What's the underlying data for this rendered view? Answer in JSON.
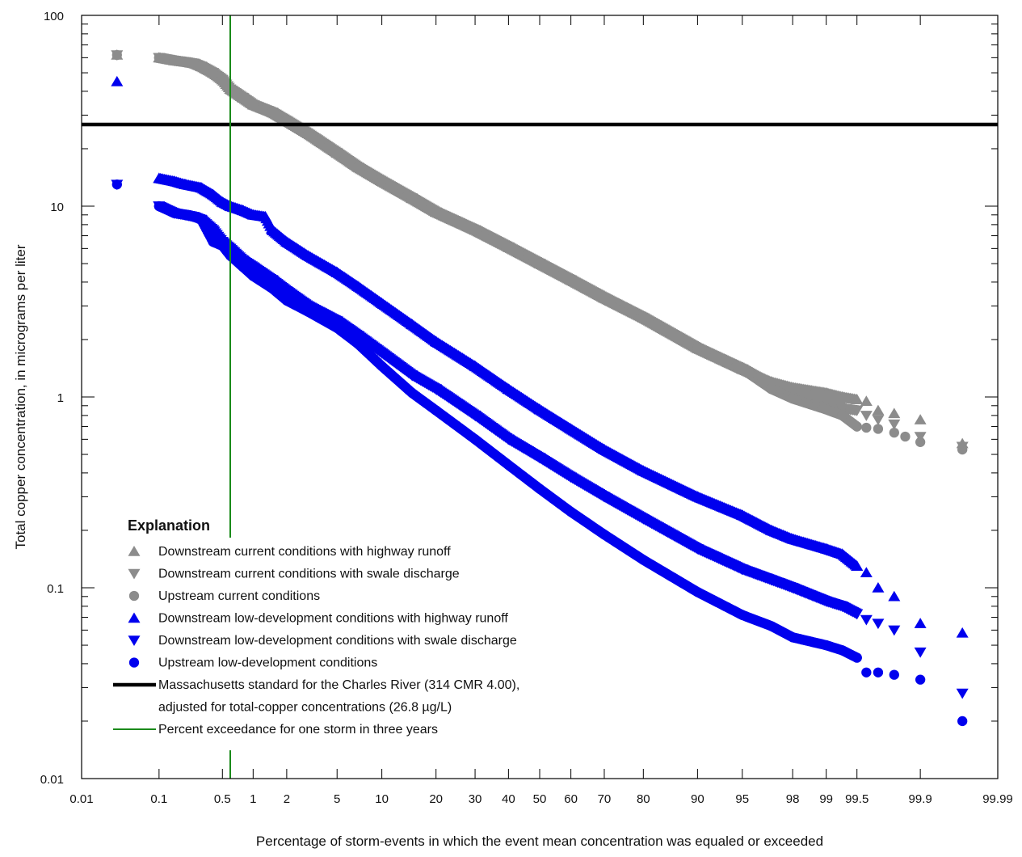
{
  "chart_data": {
    "type": "scatter",
    "title": "",
    "xlabel": "Percentage of storm-events in which the event mean concentration was equaled or exceeded",
    "ylabel": "Total copper concentration, in micrograms per liter",
    "x_scale": "probability",
    "y_scale": "log",
    "xlim": [
      0.01,
      99.99
    ],
    "ylim": [
      0.01,
      100
    ],
    "x_ticks": [
      0.01,
      0.1,
      0.5,
      1,
      2,
      5,
      10,
      20,
      30,
      40,
      50,
      60,
      70,
      80,
      90,
      95,
      98,
      99,
      99.5,
      99.9,
      99.99
    ],
    "x_tick_labels": [
      "0.01",
      "0.1",
      "0.5",
      "1",
      "2",
      "5",
      "10",
      "20",
      "30",
      "40",
      "50",
      "60",
      "70",
      "80",
      "90",
      "95",
      "98",
      "99",
      "99.5",
      "99.9",
      "99.99"
    ],
    "y_ticks": [
      0.01,
      0.1,
      1,
      10,
      100
    ],
    "y_tick_labels": [
      "0.01",
      "0.1",
      "1",
      "10",
      "100"
    ],
    "grid": false,
    "legend": {
      "title": "Explanation",
      "placement": "lower-left"
    },
    "series": [
      {
        "name": "Downstream current conditions with highway runoff",
        "color": "#8c8c8c",
        "marker": "triangle-up",
        "points": [
          [
            0.03,
            62
          ],
          [
            0.1,
            60
          ],
          [
            0.15,
            58
          ],
          [
            0.2,
            57
          ],
          [
            0.25,
            56
          ],
          [
            0.3,
            54
          ],
          [
            0.4,
            50
          ],
          [
            0.5,
            46
          ],
          [
            0.6,
            41
          ],
          [
            0.8,
            37
          ],
          [
            1,
            34
          ],
          [
            1.5,
            31
          ],
          [
            2,
            28
          ],
          [
            3,
            24
          ],
          [
            5,
            19
          ],
          [
            7,
            16
          ],
          [
            10,
            13.5
          ],
          [
            15,
            11
          ],
          [
            20,
            9.3
          ],
          [
            30,
            7.5
          ],
          [
            40,
            6.1
          ],
          [
            50,
            5
          ],
          [
            60,
            4.1
          ],
          [
            70,
            3.3
          ],
          [
            80,
            2.6
          ],
          [
            90,
            1.8
          ],
          [
            95,
            1.4
          ],
          [
            97,
            1.2
          ],
          [
            98,
            1.12
          ],
          [
            99,
            1.05
          ],
          [
            99.3,
            1.0
          ],
          [
            99.5,
            0.97
          ],
          [
            99.6,
            0.95
          ],
          [
            99.7,
            0.85
          ],
          [
            99.8,
            0.82
          ],
          [
            99.9,
            0.76
          ],
          [
            99.97,
            0.57
          ]
        ]
      },
      {
        "name": "Downstream current conditions with swale discharge",
        "color": "#8c8c8c",
        "marker": "triangle-down",
        "points": [
          [
            0.03,
            62
          ],
          [
            0.1,
            60
          ],
          [
            0.15,
            58
          ],
          [
            0.2,
            57
          ],
          [
            0.25,
            56
          ],
          [
            0.3,
            54
          ],
          [
            0.4,
            50
          ],
          [
            0.5,
            46
          ],
          [
            0.6,
            41
          ],
          [
            0.8,
            37
          ],
          [
            1,
            34
          ],
          [
            1.5,
            31
          ],
          [
            2,
            28
          ],
          [
            3,
            24
          ],
          [
            5,
            19
          ],
          [
            7,
            16
          ],
          [
            10,
            13.5
          ],
          [
            15,
            11
          ],
          [
            20,
            9.3
          ],
          [
            30,
            7.5
          ],
          [
            40,
            6.1
          ],
          [
            50,
            5
          ],
          [
            60,
            4.1
          ],
          [
            70,
            3.3
          ],
          [
            80,
            2.6
          ],
          [
            90,
            1.8
          ],
          [
            95,
            1.4
          ],
          [
            97,
            1.15
          ],
          [
            98,
            1.05
          ],
          [
            99,
            0.95
          ],
          [
            99.3,
            0.87
          ],
          [
            99.5,
            0.85
          ],
          [
            99.6,
            0.8
          ],
          [
            99.7,
            0.76
          ],
          [
            99.8,
            0.72
          ],
          [
            99.9,
            0.62
          ],
          [
            99.97,
            0.55
          ]
        ]
      },
      {
        "name": "Upstream current conditions",
        "color": "#8c8c8c",
        "marker": "circle",
        "points": [
          [
            0.03,
            62
          ],
          [
            0.1,
            60
          ],
          [
            0.15,
            58
          ],
          [
            0.2,
            57
          ],
          [
            0.25,
            56
          ],
          [
            0.3,
            54
          ],
          [
            0.4,
            50
          ],
          [
            0.5,
            46
          ],
          [
            0.6,
            41
          ],
          [
            0.8,
            37
          ],
          [
            1,
            34
          ],
          [
            1.5,
            31
          ],
          [
            2,
            28
          ],
          [
            3,
            24
          ],
          [
            5,
            19
          ],
          [
            7,
            16
          ],
          [
            10,
            13.5
          ],
          [
            15,
            11
          ],
          [
            20,
            9.3
          ],
          [
            30,
            7.5
          ],
          [
            40,
            6.1
          ],
          [
            50,
            5
          ],
          [
            60,
            4.1
          ],
          [
            70,
            3.3
          ],
          [
            80,
            2.6
          ],
          [
            90,
            1.8
          ],
          [
            95,
            1.4
          ],
          [
            97,
            1.1
          ],
          [
            98,
            0.98
          ],
          [
            99,
            0.86
          ],
          [
            99.3,
            0.8
          ],
          [
            99.5,
            0.7
          ],
          [
            99.6,
            0.69
          ],
          [
            99.7,
            0.68
          ],
          [
            99.8,
            0.65
          ],
          [
            99.85,
            0.62
          ],
          [
            99.9,
            0.58
          ],
          [
            99.97,
            0.53
          ]
        ]
      },
      {
        "name": "Downstream low-development conditions with highway runoff",
        "color": "#0000ee",
        "marker": "triangle-up",
        "points": [
          [
            0.03,
            45
          ],
          [
            0.1,
            14
          ],
          [
            0.15,
            13.5
          ],
          [
            0.2,
            13
          ],
          [
            0.3,
            12.5
          ],
          [
            0.4,
            11.5
          ],
          [
            0.5,
            10.5
          ],
          [
            0.6,
            10
          ],
          [
            0.8,
            9.5
          ],
          [
            1,
            9
          ],
          [
            1.3,
            8.8
          ],
          [
            1.5,
            7.5
          ],
          [
            2,
            6.5
          ],
          [
            3,
            5.5
          ],
          [
            5,
            4.5
          ],
          [
            7,
            3.8
          ],
          [
            10,
            3.1
          ],
          [
            15,
            2.4
          ],
          [
            20,
            1.95
          ],
          [
            30,
            1.45
          ],
          [
            40,
            1.1
          ],
          [
            50,
            0.86
          ],
          [
            60,
            0.68
          ],
          [
            70,
            0.53
          ],
          [
            80,
            0.41
          ],
          [
            90,
            0.3
          ],
          [
            95,
            0.24
          ],
          [
            97,
            0.2
          ],
          [
            98,
            0.18
          ],
          [
            99,
            0.16
          ],
          [
            99.3,
            0.15
          ],
          [
            99.5,
            0.13
          ],
          [
            99.6,
            0.12
          ],
          [
            99.7,
            0.1
          ],
          [
            99.8,
            0.09
          ],
          [
            99.9,
            0.065
          ],
          [
            99.97,
            0.058
          ]
        ]
      },
      {
        "name": "Downstream low-development conditions with swale discharge",
        "color": "#0000ee",
        "marker": "triangle-down",
        "points": [
          [
            0.03,
            13
          ],
          [
            0.1,
            10
          ],
          [
            0.15,
            9.2
          ],
          [
            0.2,
            9
          ],
          [
            0.25,
            8.8
          ],
          [
            0.3,
            8.5
          ],
          [
            0.4,
            7.5
          ],
          [
            0.5,
            6.5
          ],
          [
            0.6,
            6
          ],
          [
            0.8,
            5.2
          ],
          [
            1,
            4.8
          ],
          [
            1.5,
            4.1
          ],
          [
            2,
            3.6
          ],
          [
            3,
            3
          ],
          [
            5,
            2.5
          ],
          [
            7,
            2.1
          ],
          [
            10,
            1.7
          ],
          [
            15,
            1.3
          ],
          [
            20,
            1.1
          ],
          [
            30,
            0.8
          ],
          [
            40,
            0.6
          ],
          [
            50,
            0.48
          ],
          [
            60,
            0.38
          ],
          [
            70,
            0.3
          ],
          [
            80,
            0.23
          ],
          [
            90,
            0.16
          ],
          [
            95,
            0.125
          ],
          [
            97,
            0.11
          ],
          [
            98,
            0.1
          ],
          [
            99,
            0.085
          ],
          [
            99.3,
            0.08
          ],
          [
            99.5,
            0.073
          ],
          [
            99.6,
            0.068
          ],
          [
            99.7,
            0.065
          ],
          [
            99.8,
            0.06
          ],
          [
            99.9,
            0.046
          ],
          [
            99.97,
            0.028
          ]
        ]
      },
      {
        "name": "Upstream low-development conditions",
        "color": "#0000ee",
        "marker": "circle",
        "points": [
          [
            0.03,
            13
          ],
          [
            0.1,
            10
          ],
          [
            0.15,
            9.2
          ],
          [
            0.2,
            9
          ],
          [
            0.25,
            8.8
          ],
          [
            0.3,
            8.5
          ],
          [
            0.4,
            6.5
          ],
          [
            0.5,
            6.2
          ],
          [
            0.6,
            5.5
          ],
          [
            0.8,
            4.8
          ],
          [
            1,
            4.3
          ],
          [
            1.5,
            3.7
          ],
          [
            2,
            3.2
          ],
          [
            3,
            2.8
          ],
          [
            5,
            2.3
          ],
          [
            7,
            1.9
          ],
          [
            10,
            1.45
          ],
          [
            15,
            1.05
          ],
          [
            20,
            0.85
          ],
          [
            30,
            0.6
          ],
          [
            40,
            0.44
          ],
          [
            50,
            0.33
          ],
          [
            60,
            0.25
          ],
          [
            70,
            0.19
          ],
          [
            80,
            0.14
          ],
          [
            90,
            0.095
          ],
          [
            95,
            0.072
          ],
          [
            97,
            0.063
          ],
          [
            98,
            0.055
          ],
          [
            99,
            0.05
          ],
          [
            99.3,
            0.047
          ],
          [
            99.5,
            0.043
          ],
          [
            99.6,
            0.036
          ],
          [
            99.7,
            0.036
          ],
          [
            99.8,
            0.035
          ],
          [
            99.9,
            0.033
          ],
          [
            99.97,
            0.02
          ]
        ]
      }
    ],
    "reference_lines": [
      {
        "name": "Massachusetts standard for the Charles River (314 CMR 4.00), adjusted for total-copper concentrations (26.8 µg/L)",
        "orientation": "horizontal",
        "value": 26.8,
        "color": "#000000",
        "label_lines": [
          "Massachusetts standard for the Charles River (314 CMR 4.00),",
          "adjusted for total-copper concentrations (26.8 µg/L)"
        ]
      },
      {
        "name": "Percent exceedance for one storm in three years",
        "orientation": "vertical",
        "value": 0.6,
        "color": "#1a8a1a",
        "label_lines": [
          "Percent exceedance for one storm in three years"
        ]
      }
    ]
  }
}
